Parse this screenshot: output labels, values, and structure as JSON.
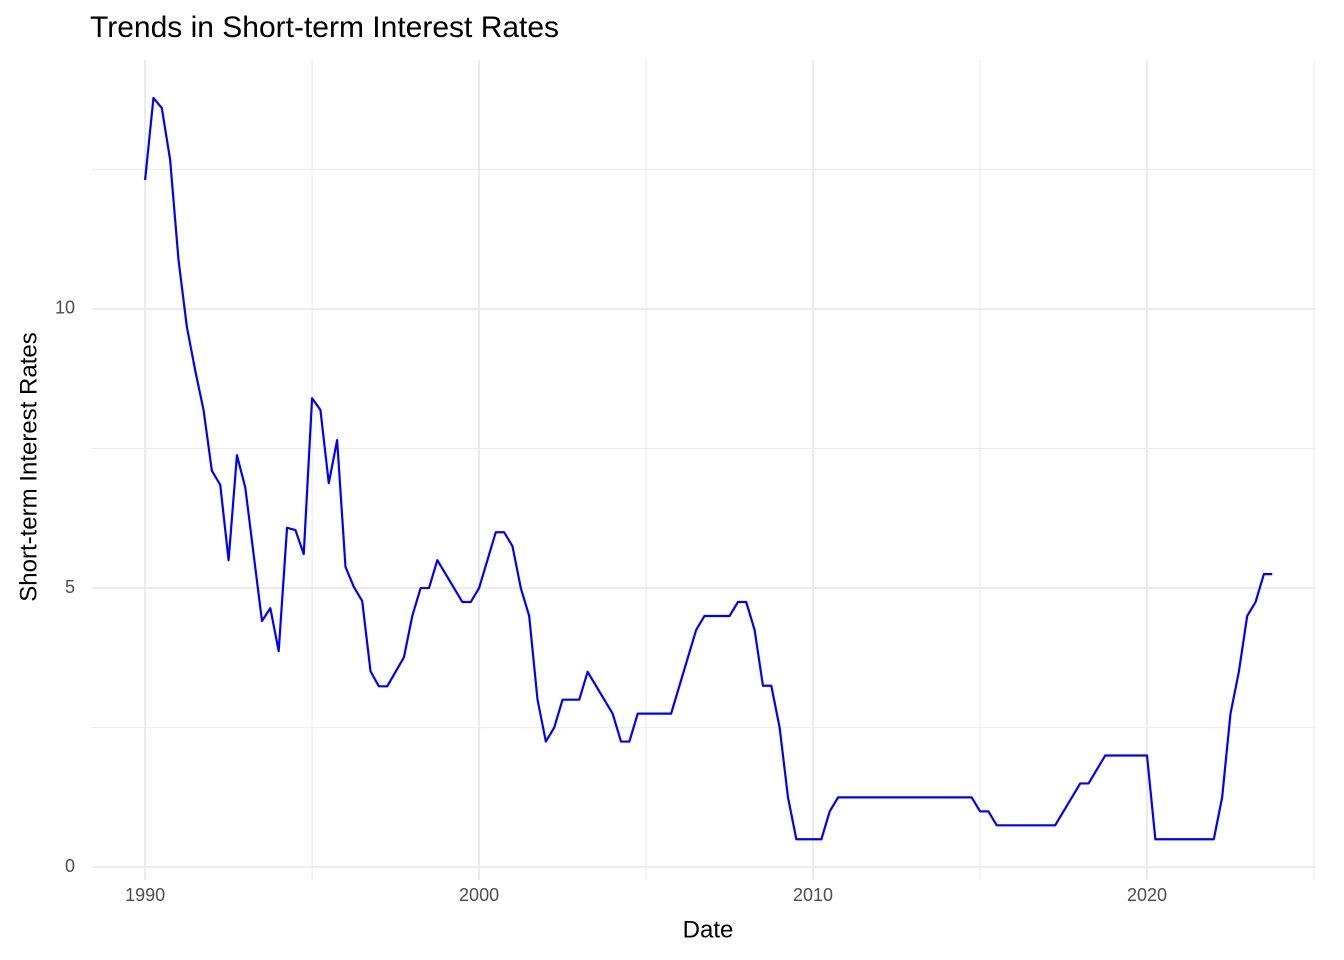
{
  "chart_data": {
    "type": "line",
    "title": "Trends in Short-term Interest Rates",
    "x_label": "Date",
    "y_label": "Short-term Interest Rates",
    "x": [
      1990,
      1990.25,
      1990.5,
      1990.75,
      1991,
      1991.25,
      1991.5,
      1991.75,
      1992,
      1992.25,
      1992.5,
      1992.75,
      1993,
      1993.25,
      1993.5,
      1993.75,
      1994,
      1994.25,
      1994.5,
      1994.75,
      1995,
      1995.25,
      1995.5,
      1995.75,
      1996,
      1996.25,
      1996.5,
      1996.75,
      1997,
      1997.25,
      1997.5,
      1997.75,
      1998,
      1998.25,
      1998.5,
      1998.75,
      1999,
      1999.25,
      1999.5,
      1999.75,
      2000,
      2000.25,
      2000.5,
      2000.75,
      2001,
      2001.25,
      2001.5,
      2001.75,
      2002,
      2002.25,
      2002.5,
      2002.75,
      2003,
      2003.25,
      2003.5,
      2003.75,
      2004,
      2004.25,
      2004.5,
      2004.75,
      2005,
      2005.25,
      2005.5,
      2005.75,
      2006,
      2006.25,
      2006.5,
      2006.75,
      2007,
      2007.25,
      2007.5,
      2007.75,
      2008,
      2008.25,
      2008.5,
      2008.75,
      2009,
      2009.25,
      2009.5,
      2009.75,
      2010,
      2010.25,
      2010.5,
      2010.75,
      2011,
      2011.25,
      2011.5,
      2011.75,
      2012,
      2012.25,
      2012.5,
      2012.75,
      2013,
      2013.25,
      2013.5,
      2013.75,
      2014,
      2014.25,
      2014.5,
      2014.75,
      2015,
      2015.25,
      2015.5,
      2015.75,
      2016,
      2016.25,
      2016.5,
      2016.75,
      2017,
      2017.25,
      2017.5,
      2017.75,
      2018,
      2018.25,
      2018.5,
      2018.75,
      2019,
      2019.25,
      2019.5,
      2019.75,
      2020,
      2020.25,
      2020.5,
      2020.75,
      2021,
      2021.25,
      2021.5,
      2021.75,
      2022,
      2022.25,
      2022.5,
      2022.75,
      2023,
      2023.25,
      2023.5,
      2023.75
    ],
    "values": [
      12.31,
      13.78,
      13.6,
      12.67,
      10.88,
      9.68,
      8.9,
      8.19,
      7.1,
      6.85,
      5.5,
      7.38,
      6.8,
      5.6,
      4.41,
      4.64,
      3.87,
      6.08,
      6.04,
      5.61,
      8.4,
      8.19,
      6.88,
      7.65,
      5.38,
      5.02,
      4.77,
      3.51,
      3.24,
      3.24,
      3.5,
      3.76,
      4.5,
      5,
      5,
      5.5,
      5.25,
      5,
      4.75,
      4.75,
      5,
      5.5,
      6,
      6,
      5.75,
      5,
      4.5,
      3,
      2.25,
      2.5,
      3,
      3,
      3,
      3.5,
      3.25,
      3,
      2.75,
      2.25,
      2.25,
      2.75,
      2.75,
      2.75,
      2.75,
      2.75,
      3.25,
      3.75,
      4.25,
      4.5,
      4.5,
      4.5,
      4.5,
      4.75,
      4.75,
      4.25,
      3.25,
      3.25,
      2.5,
      1.25,
      0.5,
      0.5,
      0.5,
      0.5,
      1,
      1.25,
      1.25,
      1.25,
      1.25,
      1.25,
      1.25,
      1.25,
      1.25,
      1.25,
      1.25,
      1.25,
      1.25,
      1.25,
      1.25,
      1.25,
      1.25,
      1.25,
      1,
      1,
      0.75,
      0.75,
      0.75,
      0.75,
      0.75,
      0.75,
      0.75,
      0.75,
      1,
      1.25,
      1.5,
      1.5,
      1.75,
      2,
      2,
      2,
      2,
      2,
      2,
      0.5,
      0.5,
      0.5,
      0.5,
      0.5,
      0.5,
      0.5,
      0.5,
      1.25,
      2.75,
      3.5,
      4.5,
      4.75,
      5.25,
      5.25
    ],
    "color": "#0000ff",
    "xlim": [
      1988.41,
      2025.06
    ],
    "xticks": [
      1990,
      2000,
      2010,
      2020
    ],
    "x_minor_ticks": [
      1995,
      2005,
      2015,
      2025
    ],
    "ylim": [
      -0.23,
      14.46
    ],
    "yticks": [
      0,
      5,
      10
    ],
    "y_minor_ticks": [
      2.5,
      7.5,
      12.5
    ],
    "grid": true
  }
}
